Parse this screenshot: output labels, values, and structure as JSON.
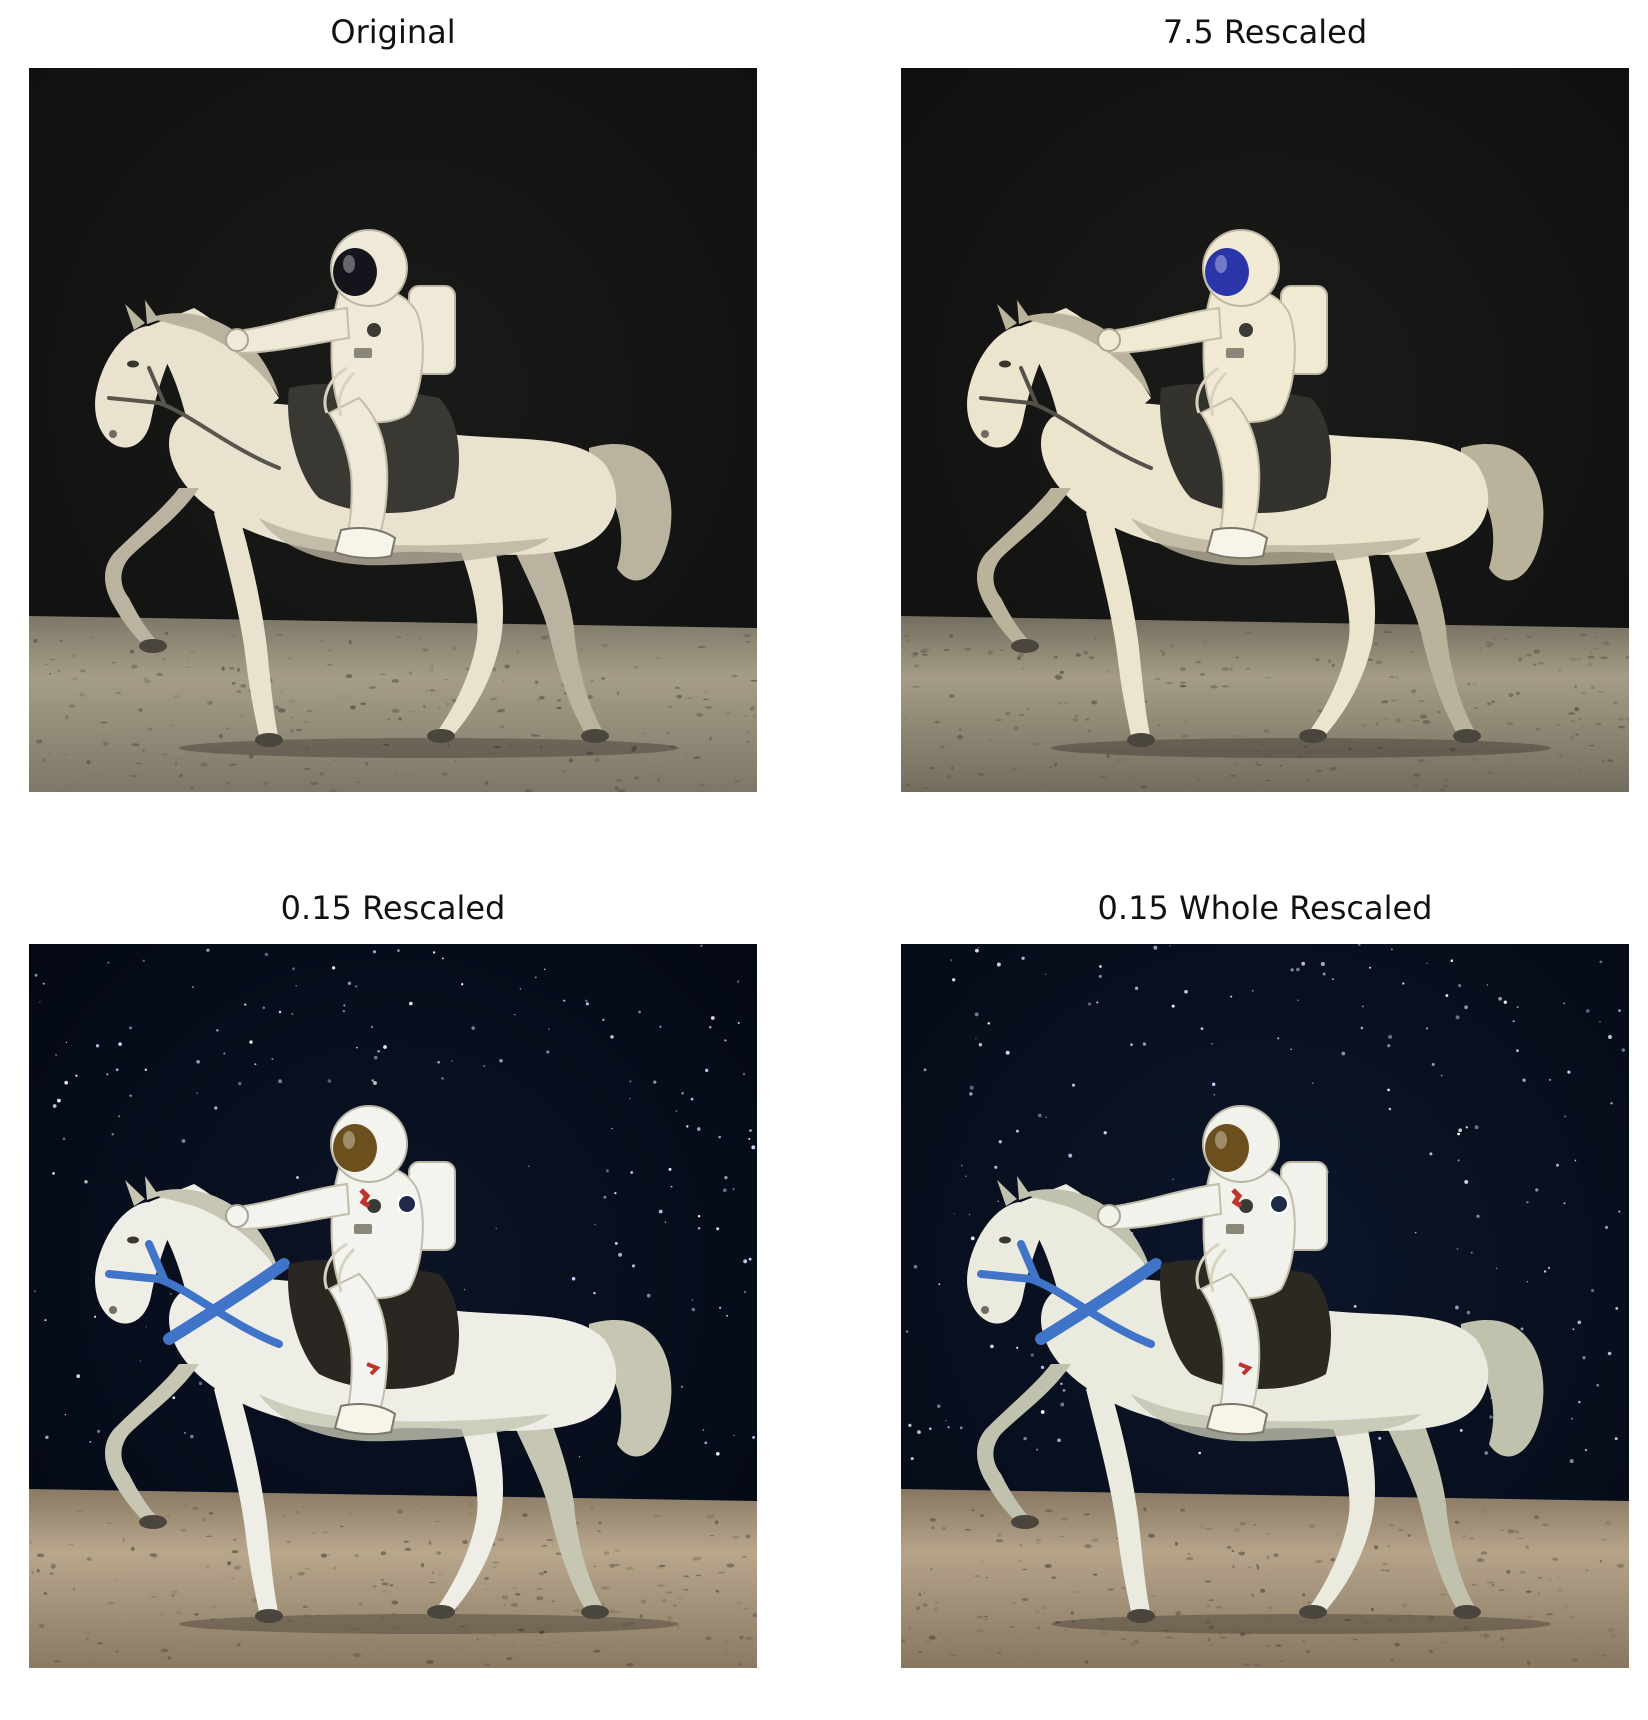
{
  "figure": {
    "panels": [
      {
        "title": "Original",
        "palette": {
          "sky": "#101010",
          "sky_glow": "#1a1a18",
          "ground": "#a59d88",
          "ground_dark": "#7d7767",
          "horse": "#e8e2cf",
          "horse_shade": "#b9b39f",
          "suit": "#efe9d7",
          "visor": "#14141c",
          "saddle": "#3a3833",
          "rein": "#58554c",
          "stars": false
        }
      },
      {
        "title": "7.5 Rescaled",
        "palette": {
          "sky": "#0f0f0f",
          "sky_glow": "#1b1b19",
          "ground": "#a49c86",
          "ground_dark": "#736d5e",
          "horse": "#ece5cd",
          "horse_shade": "#bab39b",
          "suit": "#f1ead3",
          "visor": "#2a35a8",
          "saddle": "#34322d",
          "rein": "#54514a",
          "stars": false
        }
      },
      {
        "title": "0.15 Rescaled",
        "palette": {
          "sky": "#040814",
          "sky_glow": "#0b1426",
          "ground": "#b8a78d",
          "ground_dark": "#8a7a63",
          "horse": "#efeee6",
          "horse_shade": "#c6c6b3",
          "suit": "#f3f3ef",
          "visor": "#6b4f1c",
          "saddle": "#2a2621",
          "rein": "#3f74c9",
          "stars": true
        }
      },
      {
        "title": "0.15 Whole Rescaled",
        "palette": {
          "sky": "#050a16",
          "sky_glow": "#0d172b",
          "ground": "#b5a48a",
          "ground_dark": "#877761",
          "horse": "#eaeadf",
          "horse_shade": "#c1c2ad",
          "suit": "#f2f2ed",
          "visor": "#6b4f1c",
          "saddle": "#2c2822",
          "rein": "#3f74c9",
          "stars": true
        }
      }
    ]
  }
}
